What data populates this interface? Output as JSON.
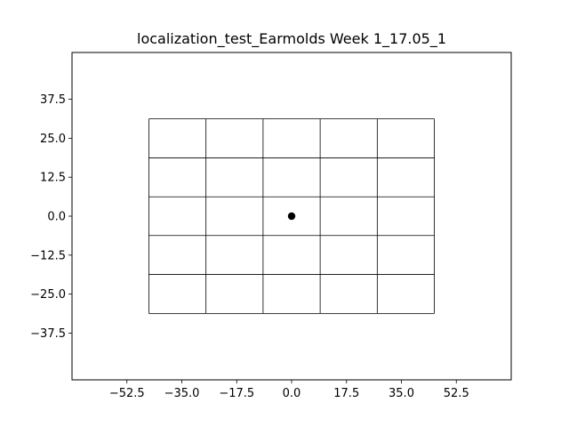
{
  "chart_data": {
    "type": "scatter",
    "title": "localization_test_Earmolds Week 1_17.05_1",
    "xlabel": "",
    "ylabel": "",
    "xlim": [
      -70,
      70
    ],
    "ylim": [
      -52.5,
      52.5
    ],
    "x_ticks": [
      -52.5,
      -35.0,
      -17.5,
      0.0,
      17.5,
      35.0,
      52.5
    ],
    "x_tick_labels": [
      "−52.5",
      "−35.0",
      "−17.5",
      "0.0",
      "17.5",
      "35.0",
      "52.5"
    ],
    "y_ticks": [
      37.5,
      25.0,
      12.5,
      0.0,
      -12.5,
      -25.0,
      -37.5
    ],
    "y_tick_labels": [
      "37.5",
      "25.0",
      "12.5",
      "0.0",
      "−12.5",
      "−25.0",
      "−37.5"
    ],
    "grid_x_edges": [
      -45.5,
      -27.3,
      -9.1,
      9.1,
      27.3,
      45.5
    ],
    "grid_y_edges": [
      -31.2,
      -18.7,
      -6.2,
      6.2,
      18.7,
      31.2
    ],
    "points": [
      {
        "x": 0.0,
        "y": 0.0
      }
    ],
    "grid": false,
    "colors": {
      "grid": "#000000",
      "point": "#000000",
      "axes": "#000000"
    }
  }
}
